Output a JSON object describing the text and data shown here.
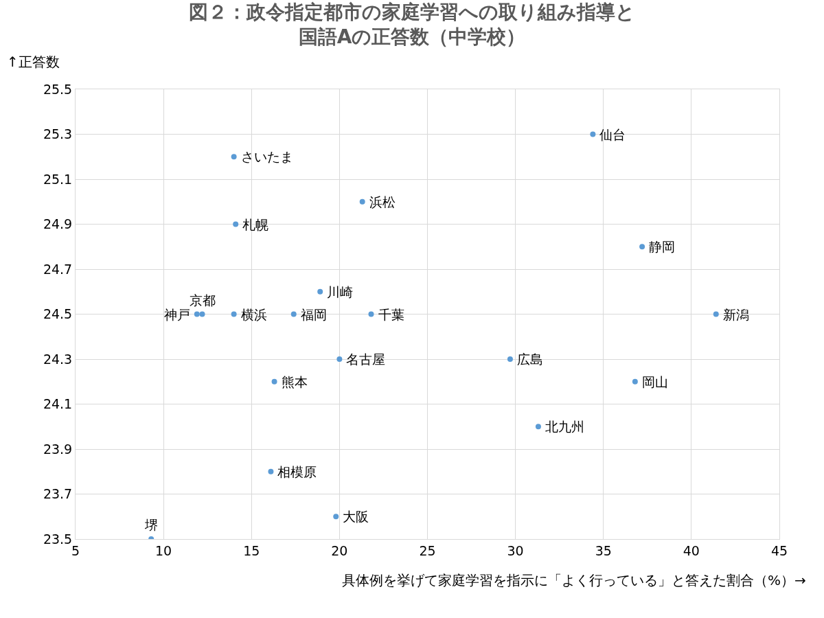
{
  "chart_data": {
    "type": "scatter",
    "title": "図２：政令指定都市の家庭学習への取り組み指導と国語Aの正答数（中学校）",
    "xlabel": "具体例を挙げて家庭学習を指示に「よく行っている」と答えた割合（%）→",
    "ylabel": "↑正答数",
    "series": [
      {
        "color": "#5b9bd5",
        "x": [
          34.4,
          14.0,
          21.3,
          14.1,
          37.2,
          18.9,
          12.2,
          11.9,
          14.0,
          17.4,
          21.8,
          41.4,
          20.0,
          29.7,
          16.3,
          36.8,
          31.3,
          16.1,
          19.8,
          9.3
        ],
        "values": [
          25.3,
          25.2,
          25.0,
          24.9,
          24.8,
          24.6,
          24.5,
          24.5,
          24.5,
          24.5,
          24.5,
          24.5,
          24.3,
          24.3,
          24.2,
          24.2,
          24.0,
          23.8,
          23.6,
          23.5
        ]
      }
    ],
    "annotations": [
      {
        "text": "仙台",
        "x": 34.4,
        "y": 25.3
      },
      {
        "text": "さいたま",
        "x": 14.0,
        "y": 25.2
      },
      {
        "text": "浜松",
        "x": 21.3,
        "y": 25.0
      },
      {
        "text": "札幌",
        "x": 14.1,
        "y": 24.9
      },
      {
        "text": "静岡",
        "x": 37.2,
        "y": 24.8
      },
      {
        "text": "川崎",
        "x": 18.9,
        "y": 24.6
      },
      {
        "text": "京都",
        "x": 12.2,
        "y": 24.5
      },
      {
        "text": "神戸",
        "x": 11.9,
        "y": 24.5
      },
      {
        "text": "横浜",
        "x": 14.0,
        "y": 24.5
      },
      {
        "text": "福岡",
        "x": 17.4,
        "y": 24.5
      },
      {
        "text": "千葉",
        "x": 21.8,
        "y": 24.5
      },
      {
        "text": "新潟",
        "x": 41.4,
        "y": 24.5
      },
      {
        "text": "名古屋",
        "x": 20.0,
        "y": 24.3
      },
      {
        "text": "広島",
        "x": 29.7,
        "y": 24.3
      },
      {
        "text": "熊本",
        "x": 16.3,
        "y": 24.2
      },
      {
        "text": "岡山",
        "x": 36.8,
        "y": 24.2
      },
      {
        "text": "北九州",
        "x": 31.3,
        "y": 24.0
      },
      {
        "text": "相模原",
        "x": 16.1,
        "y": 23.8
      },
      {
        "text": "大阪",
        "x": 19.8,
        "y": 23.6
      },
      {
        "text": "堺",
        "x": 9.3,
        "y": 23.5
      }
    ],
    "xlim": [
      5,
      45
    ],
    "xticks": [
      5,
      10,
      15,
      20,
      25,
      30,
      35,
      40,
      45
    ],
    "ylim": [
      23.5,
      25.5
    ],
    "yticks": [
      23.5,
      23.7,
      23.9,
      24.1,
      24.3,
      24.5,
      24.7,
      24.9,
      25.1,
      25.3,
      25.5
    ],
    "grid": true,
    "marker": "circle"
  }
}
